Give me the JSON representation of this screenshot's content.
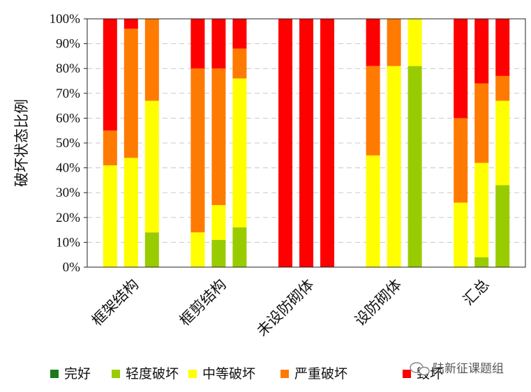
{
  "chart_data": {
    "type": "bar",
    "stacked": true,
    "title": "",
    "xlabel": "",
    "ylabel": "破坏状态比例",
    "ylim": [
      0,
      100
    ],
    "yticks": [
      "0%",
      "10%",
      "20%",
      "30%",
      "40%",
      "50%",
      "60%",
      "70%",
      "80%",
      "90%",
      "100%"
    ],
    "grid": true,
    "legend_position": "bottom",
    "groups": [
      "框架结构",
      "框剪结构",
      "未设防砌体",
      "设防砌体",
      "汇总"
    ],
    "bars_per_group": 3,
    "series": [
      {
        "name": "完好",
        "color": "#1a7a1a",
        "values": [
          0,
          0,
          0,
          0,
          0,
          0,
          0,
          0,
          0,
          0,
          0,
          0,
          0,
          0,
          0
        ]
      },
      {
        "name": "轻度破坏",
        "color": "#99cc00",
        "values": [
          0,
          0,
          14,
          0,
          11,
          16,
          0,
          0,
          0,
          0,
          0,
          81,
          0,
          4,
          33
        ]
      },
      {
        "name": "中等破坏",
        "color": "#ffff00",
        "values": [
          41,
          44,
          53,
          14,
          14,
          60,
          0,
          0,
          0,
          45,
          81,
          19,
          26,
          38,
          34
        ]
      },
      {
        "name": "严重破坏",
        "color": "#ff7a00",
        "values": [
          14,
          52,
          33,
          66,
          55,
          12,
          0,
          0,
          0,
          36,
          19,
          0,
          34,
          32,
          10
        ]
      },
      {
        "name": "毁坏",
        "color": "#ff0000",
        "values": [
          45,
          4,
          0,
          20,
          20,
          12,
          100,
          100,
          100,
          19,
          0,
          0,
          40,
          26,
          23
        ]
      }
    ]
  },
  "watermark": "陆新征课题组"
}
